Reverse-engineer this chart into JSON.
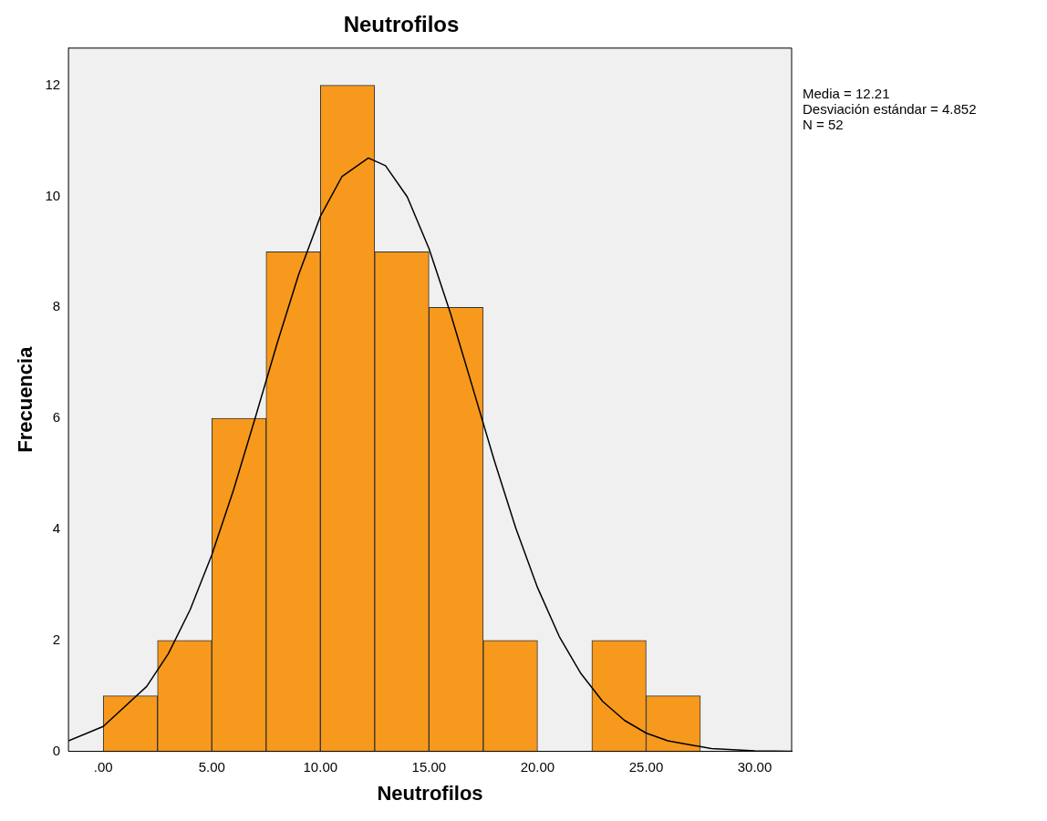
{
  "chart_data": {
    "type": "histogram",
    "title": "Neutrofilos",
    "xlabel": "Neutrofilos",
    "ylabel": "Frecuencia",
    "bins": [
      0,
      2.5,
      5,
      7.5,
      10,
      12.5,
      15,
      17.5,
      20,
      22.5,
      25,
      27.5
    ],
    "values": [
      1,
      2,
      6,
      9,
      12,
      9,
      8,
      2,
      0,
      2,
      1
    ],
    "color": "#f7991d",
    "series": [
      {
        "type": "line",
        "color": "#000000",
        "x": [
          -1.6,
          0,
          2,
          3,
          4,
          5,
          6,
          7,
          8,
          9,
          10,
          11,
          12.21,
          13,
          14,
          15,
          16,
          17,
          18,
          19,
          20,
          21,
          22,
          23,
          24,
          25,
          26,
          28,
          30,
          31.7
        ],
        "values": [
          0.19,
          0.45,
          1.17,
          1.76,
          2.55,
          3.54,
          4.71,
          6.01,
          7.34,
          8.59,
          9.64,
          10.36,
          10.69,
          10.55,
          9.99,
          9.06,
          7.88,
          6.57,
          5.25,
          4.02,
          2.95,
          2.07,
          1.4,
          0.9,
          0.56,
          0.33,
          0.19,
          0.05,
          0.01,
          0
        ]
      }
    ],
    "xlim": [
      -1.6,
      31.7
    ],
    "ylim": [
      0,
      12.67
    ],
    "xticks": [
      {
        "value": 0,
        "label": ".00"
      },
      {
        "value": 5,
        "label": "5.00"
      },
      {
        "value": 10,
        "label": "10.00"
      },
      {
        "value": 15,
        "label": "15.00"
      },
      {
        "value": 20,
        "label": "20.00"
      },
      {
        "value": 25,
        "label": "25.00"
      },
      {
        "value": 30,
        "label": "30.00"
      }
    ],
    "yticks": [
      0,
      2,
      4,
      6,
      8,
      10,
      12
    ],
    "grid": false,
    "annotations": [
      "Media = 12.21",
      "Desviación estándar = 4.852",
      "N = 52"
    ]
  }
}
